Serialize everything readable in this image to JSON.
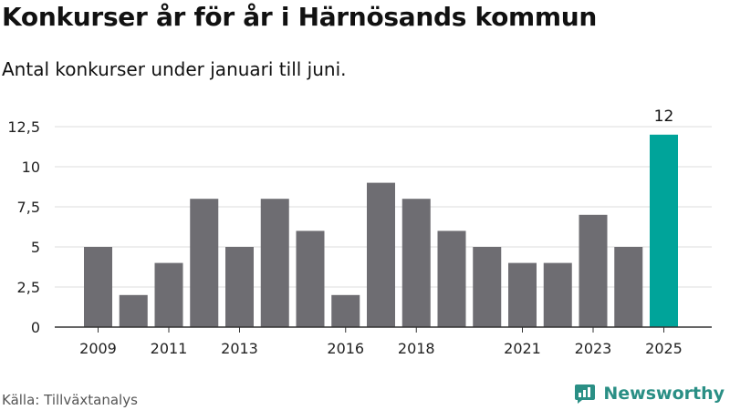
{
  "title": "Konkurser år för år i Härnösands kommun",
  "subtitle": "Antal konkurser under januari till juni.",
  "source": "Källa: Tillväxtanalys",
  "brand": {
    "name": "Newsworthy",
    "icon": "newsworthy-logo-icon"
  },
  "colors": {
    "bar": "#6e6d72",
    "highlight": "#00a49a",
    "grid": "#dddddd",
    "axis": "#333333"
  },
  "chart_data": {
    "type": "bar",
    "categories": [
      "2009",
      "2010",
      "2011",
      "2012",
      "2013",
      "2014",
      "2015",
      "2016",
      "2017",
      "2018",
      "2019",
      "2020",
      "2021",
      "2022",
      "2023",
      "2024",
      "2025"
    ],
    "values": [
      5,
      2,
      4,
      8,
      5,
      8,
      6,
      2,
      9,
      8,
      6,
      5,
      4,
      4,
      7,
      5,
      12
    ],
    "tick_labels": [
      "2009",
      "2011",
      "2013",
      "2016",
      "2018",
      "2021",
      "2023",
      "2025"
    ],
    "highlight": {
      "category": "2025",
      "label": "12"
    },
    "yticks": [
      {
        "value": 0,
        "label": "0"
      },
      {
        "value": 2.5,
        "label": "2,5"
      },
      {
        "value": 5,
        "label": "5"
      },
      {
        "value": 7.5,
        "label": "7,5"
      },
      {
        "value": 10,
        "label": "10"
      },
      {
        "value": 12.5,
        "label": "12,5"
      }
    ],
    "ylim": [
      0,
      12.5
    ],
    "grid": true,
    "xlabel": "",
    "ylabel": ""
  }
}
